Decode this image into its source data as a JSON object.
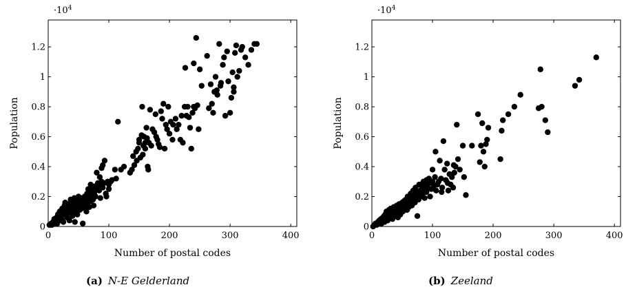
{
  "chart_data": [
    {
      "type": "scatter",
      "caption_prefix": "(a)",
      "caption": "N-E Gelderland",
      "xlabel": "Number of postal codes",
      "ylabel": "Population",
      "y_multiplier_base": "·10",
      "y_multiplier_exp": "4",
      "xlim": [
        0,
        410
      ],
      "ylim": [
        0,
        1.38
      ],
      "xticks": [
        0,
        100,
        200,
        300,
        400
      ],
      "xtick_labels": [
        "0",
        "100",
        "200",
        "300",
        "400"
      ],
      "yticks": [
        0,
        0.2,
        0.4,
        0.6,
        0.8,
        1,
        1.2
      ],
      "ytick_labels": [
        "0",
        "0.2",
        "0.4",
        "0.6",
        "0.8",
        "1",
        "1.2"
      ],
      "grid": false,
      "points": [
        [
          2,
          0.01
        ],
        [
          5,
          0.02
        ],
        [
          6,
          0.01
        ],
        [
          8,
          0.03
        ],
        [
          10,
          0.02
        ],
        [
          10,
          0.05
        ],
        [
          12,
          0.03
        ],
        [
          14,
          0.06
        ],
        [
          15,
          0.02
        ],
        [
          16,
          0.08
        ],
        [
          18,
          0.04
        ],
        [
          19,
          0.1
        ],
        [
          20,
          0.07
        ],
        [
          22,
          0.05
        ],
        [
          23,
          0.12
        ],
        [
          24,
          0.09
        ],
        [
          25,
          0.03
        ],
        [
          27,
          0.14
        ],
        [
          28,
          0.08
        ],
        [
          28,
          0.16
        ],
        [
          30,
          0.11
        ],
        [
          31,
          0.06
        ],
        [
          32,
          0.13
        ],
        [
          33,
          0.09
        ],
        [
          34,
          0.15
        ],
        [
          35,
          0.04
        ],
        [
          36,
          0.12
        ],
        [
          37,
          0.18
        ],
        [
          38,
          0.1
        ],
        [
          38,
          0.14
        ],
        [
          40,
          0.07
        ],
        [
          40,
          0.16
        ],
        [
          42,
          0.12
        ],
        [
          43,
          0.19
        ],
        [
          44,
          0.03
        ],
        [
          45,
          0.1
        ],
        [
          45,
          0.15
        ],
        [
          46,
          0.13
        ],
        [
          48,
          0.18
        ],
        [
          48,
          0.08
        ],
        [
          50,
          0.14
        ],
        [
          50,
          0.2
        ],
        [
          52,
          0.11
        ],
        [
          52,
          0.16
        ],
        [
          54,
          0.19
        ],
        [
          55,
          0.12
        ],
        [
          56,
          0.15
        ],
        [
          57,
          0.02
        ],
        [
          58,
          0.18
        ],
        [
          60,
          0.13
        ],
        [
          60,
          0.2
        ],
        [
          62,
          0.17
        ],
        [
          63,
          0.1
        ],
        [
          64,
          0.22
        ],
        [
          65,
          0.15
        ],
        [
          66,
          0.25
        ],
        [
          67,
          0.19
        ],
        [
          68,
          0.13
        ],
        [
          69,
          0.21
        ],
        [
          70,
          0.28
        ],
        [
          70,
          0.17
        ],
        [
          72,
          0.23
        ],
        [
          73,
          0.26
        ],
        [
          74,
          0.18
        ],
        [
          75,
          0.14
        ],
        [
          76,
          0.22
        ],
        [
          78,
          0.27
        ],
        [
          78,
          0.2
        ],
        [
          80,
          0.25
        ],
        [
          80,
          0.36
        ],
        [
          82,
          0.29
        ],
        [
          84,
          0.24
        ],
        [
          85,
          0.33
        ],
        [
          86,
          0.19
        ],
        [
          87,
          0.27
        ],
        [
          88,
          0.3
        ],
        [
          88,
          0.39
        ],
        [
          90,
          0.41
        ],
        [
          90,
          0.26
        ],
        [
          92,
          0.29
        ],
        [
          93,
          0.44
        ],
        [
          95,
          0.22
        ],
        [
          96,
          0.2
        ],
        [
          98,
          0.3
        ],
        [
          100,
          0.25
        ],
        [
          100,
          0.28
        ],
        [
          103,
          0.3
        ],
        [
          105,
          0.31
        ],
        [
          110,
          0.38
        ],
        [
          112,
          0.32
        ],
        [
          115,
          0.7
        ],
        [
          120,
          0.38
        ],
        [
          125,
          0.4
        ],
        [
          135,
          0.36
        ],
        [
          138,
          0.38
        ],
        [
          140,
          0.47
        ],
        [
          142,
          0.41
        ],
        [
          145,
          0.5
        ],
        [
          146,
          0.44
        ],
        [
          148,
          0.52
        ],
        [
          150,
          0.56
        ],
        [
          150,
          0.58
        ],
        [
          152,
          0.46
        ],
        [
          154,
          0.61
        ],
        [
          155,
          0.8
        ],
        [
          156,
          0.48
        ],
        [
          157,
          0.54
        ],
        [
          158,
          0.6
        ],
        [
          160,
          0.56
        ],
        [
          160,
          0.52
        ],
        [
          162,
          0.66
        ],
        [
          163,
          0.59
        ],
        [
          164,
          0.4
        ],
        [
          165,
          0.38
        ],
        [
          166,
          0.56
        ],
        [
          168,
          0.78
        ],
        [
          170,
          0.54
        ],
        [
          172,
          0.65
        ],
        [
          175,
          0.63
        ],
        [
          177,
          0.75
        ],
        [
          178,
          0.6
        ],
        [
          180,
          0.58
        ],
        [
          182,
          0.55
        ],
        [
          184,
          0.53
        ],
        [
          186,
          0.77
        ],
        [
          188,
          0.72
        ],
        [
          190,
          0.82
        ],
        [
          192,
          0.52
        ],
        [
          194,
          0.68
        ],
        [
          196,
          0.65
        ],
        [
          198,
          0.8
        ],
        [
          200,
          0.62
        ],
        [
          202,
          0.7
        ],
        [
          205,
          0.58
        ],
        [
          206,
          0.68
        ],
        [
          210,
          0.72
        ],
        [
          212,
          0.65
        ],
        [
          215,
          0.68
        ],
        [
          218,
          0.58
        ],
        [
          220,
          0.74
        ],
        [
          222,
          0.56
        ],
        [
          225,
          0.8
        ],
        [
          226,
          1.06
        ],
        [
          228,
          0.74
        ],
        [
          230,
          0.8
        ],
        [
          232,
          0.73
        ],
        [
          234,
          0.66
        ],
        [
          236,
          0.52
        ],
        [
          238,
          0.76
        ],
        [
          240,
          0.8
        ],
        [
          240,
          1.09
        ],
        [
          242,
          0.79
        ],
        [
          244,
          1.26
        ],
        [
          246,
          0.81
        ],
        [
          248,
          0.65
        ],
        [
          250,
          1.05
        ],
        [
          253,
          0.94
        ],
        [
          262,
          1.14
        ],
        [
          265,
          0.79
        ],
        [
          268,
          0.95
        ],
        [
          270,
          0.82
        ],
        [
          272,
          0.76
        ],
        [
          274,
          0.9
        ],
        [
          276,
          1.0
        ],
        [
          278,
          0.91
        ],
        [
          279,
          0.88
        ],
        [
          282,
          1.22
        ],
        [
          284,
          0.94
        ],
        [
          285,
          0.96
        ],
        [
          288,
          1.08
        ],
        [
          290,
          1.13
        ],
        [
          292,
          0.74
        ],
        [
          295,
          1.17
        ],
        [
          297,
          0.97
        ],
        [
          300,
          0.76
        ],
        [
          302,
          0.86
        ],
        [
          304,
          1.03
        ],
        [
          306,
          0.93
        ],
        [
          306,
          0.9
        ],
        [
          308,
          1.16
        ],
        [
          310,
          1.21
        ],
        [
          312,
          1.0
        ],
        [
          315,
          1.04
        ],
        [
          318,
          1.18
        ],
        [
          320,
          1.2
        ],
        [
          325,
          1.13
        ],
        [
          330,
          1.08
        ],
        [
          335,
          1.18
        ],
        [
          340,
          1.22
        ],
        [
          344,
          1.22
        ]
      ]
    },
    {
      "type": "scatter",
      "caption_prefix": "(b)",
      "caption": "Zeeland",
      "xlabel": "Number of postal codes",
      "ylabel": "Population",
      "y_multiplier_base": "·10",
      "y_multiplier_exp": "4",
      "xlim": [
        0,
        410
      ],
      "ylim": [
        0,
        1.38
      ],
      "xticks": [
        0,
        100,
        200,
        300,
        400
      ],
      "xtick_labels": [
        "0",
        "100",
        "200",
        "300",
        "400"
      ],
      "yticks": [
        0,
        0.2,
        0.4,
        0.6,
        0.8,
        1,
        1.2
      ],
      "ytick_labels": [
        "0",
        "0.2",
        "0.4",
        "0.6",
        "0.8",
        "1",
        "1.2"
      ],
      "grid": false,
      "points": [
        [
          2,
          0.0
        ],
        [
          4,
          0.01
        ],
        [
          6,
          0.02
        ],
        [
          8,
          0.01
        ],
        [
          10,
          0.03
        ],
        [
          11,
          0.02
        ],
        [
          12,
          0.04
        ],
        [
          14,
          0.03
        ],
        [
          15,
          0.05
        ],
        [
          16,
          0.02
        ],
        [
          18,
          0.06
        ],
        [
          19,
          0.04
        ],
        [
          20,
          0.07
        ],
        [
          21,
          0.03
        ],
        [
          22,
          0.08
        ],
        [
          23,
          0.05
        ],
        [
          24,
          0.1
        ],
        [
          25,
          0.06
        ],
        [
          26,
          0.04
        ],
        [
          27,
          0.08
        ],
        [
          28,
          0.11
        ],
        [
          29,
          0.06
        ],
        [
          30,
          0.09
        ],
        [
          31,
          0.12
        ],
        [
          32,
          0.07
        ],
        [
          33,
          0.1
        ],
        [
          34,
          0.05
        ],
        [
          35,
          0.08
        ],
        [
          36,
          0.13
        ],
        [
          37,
          0.11
        ],
        [
          38,
          0.07
        ],
        [
          39,
          0.09
        ],
        [
          40,
          0.12
        ],
        [
          41,
          0.14
        ],
        [
          42,
          0.1
        ],
        [
          43,
          0.06
        ],
        [
          44,
          0.13
        ],
        [
          45,
          0.15
        ],
        [
          46,
          0.11
        ],
        [
          47,
          0.08
        ],
        [
          48,
          0.14
        ],
        [
          49,
          0.12
        ],
        [
          50,
          0.16
        ],
        [
          51,
          0.1
        ],
        [
          52,
          0.13
        ],
        [
          53,
          0.17
        ],
        [
          54,
          0.12
        ],
        [
          55,
          0.15
        ],
        [
          56,
          0.18
        ],
        [
          57,
          0.14
        ],
        [
          58,
          0.11
        ],
        [
          59,
          0.2
        ],
        [
          60,
          0.16
        ],
        [
          61,
          0.13
        ],
        [
          62,
          0.19
        ],
        [
          63,
          0.15
        ],
        [
          64,
          0.22
        ],
        [
          65,
          0.17
        ],
        [
          66,
          0.14
        ],
        [
          67,
          0.2
        ],
        [
          68,
          0.24
        ],
        [
          69,
          0.18
        ],
        [
          70,
          0.21
        ],
        [
          71,
          0.16
        ],
        [
          72,
          0.26
        ],
        [
          73,
          0.19
        ],
        [
          74,
          0.23
        ],
        [
          75,
          0.07
        ],
        [
          76,
          0.22
        ],
        [
          77,
          0.18
        ],
        [
          78,
          0.28
        ],
        [
          80,
          0.24
        ],
        [
          80,
          0.2
        ],
        [
          82,
          0.27
        ],
        [
          84,
          0.22
        ],
        [
          85,
          0.3
        ],
        [
          86,
          0.25
        ],
        [
          87,
          0.19
        ],
        [
          88,
          0.28
        ],
        [
          90,
          0.31
        ],
        [
          90,
          0.23
        ],
        [
          92,
          0.26
        ],
        [
          94,
          0.32
        ],
        [
          95,
          0.29
        ],
        [
          96,
          0.2
        ],
        [
          98,
          0.25
        ],
        [
          100,
          0.3
        ],
        [
          100,
          0.38
        ],
        [
          102,
          0.27
        ],
        [
          104,
          0.33
        ],
        [
          105,
          0.5
        ],
        [
          106,
          0.24
        ],
        [
          108,
          0.28
        ],
        [
          110,
          0.3
        ],
        [
          112,
          0.44
        ],
        [
          114,
          0.32
        ],
        [
          115,
          0.23
        ],
        [
          116,
          0.26
        ],
        [
          118,
          0.57
        ],
        [
          120,
          0.38
        ],
        [
          122,
          0.31
        ],
        [
          124,
          0.42
        ],
        [
          125,
          0.29
        ],
        [
          126,
          0.24
        ],
        [
          128,
          0.35
        ],
        [
          130,
          0.28
        ],
        [
          132,
          0.33
        ],
        [
          134,
          0.26
        ],
        [
          135,
          0.41
        ],
        [
          136,
          0.36
        ],
        [
          138,
          0.4
        ],
        [
          140,
          0.68
        ],
        [
          142,
          0.45
        ],
        [
          145,
          0.38
        ],
        [
          150,
          0.54
        ],
        [
          152,
          0.33
        ],
        [
          155,
          0.21
        ],
        [
          165,
          0.54
        ],
        [
          175,
          0.75
        ],
        [
          178,
          0.43
        ],
        [
          180,
          0.54
        ],
        [
          182,
          0.69
        ],
        [
          184,
          0.5
        ],
        [
          186,
          0.4
        ],
        [
          188,
          0.55
        ],
        [
          190,
          0.58
        ],
        [
          192,
          0.66
        ],
        [
          212,
          0.45
        ],
        [
          214,
          0.64
        ],
        [
          216,
          0.71
        ],
        [
          225,
          0.75
        ],
        [
          235,
          0.8
        ],
        [
          245,
          0.88
        ],
        [
          275,
          0.79
        ],
        [
          278,
          1.05
        ],
        [
          280,
          0.8
        ],
        [
          286,
          0.71
        ],
        [
          290,
          0.63
        ],
        [
          335,
          0.94
        ],
        [
          342,
          0.98
        ],
        [
          370,
          1.13
        ]
      ]
    }
  ]
}
